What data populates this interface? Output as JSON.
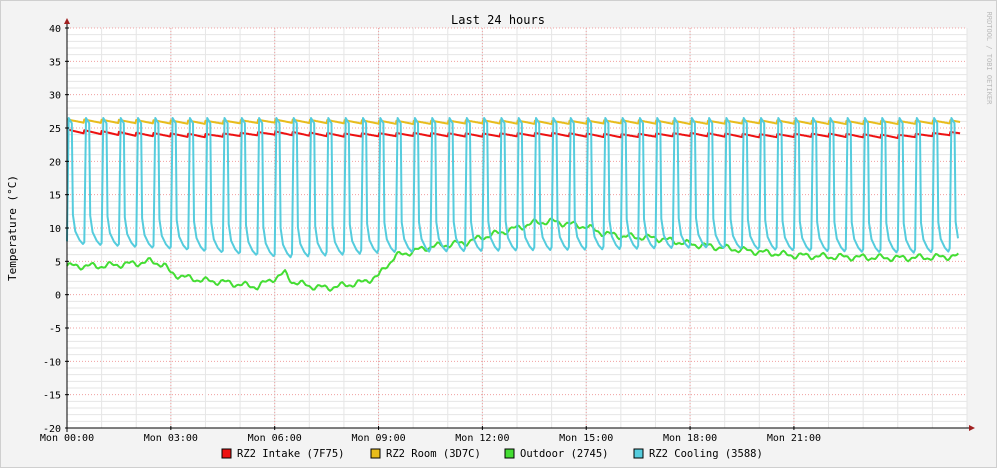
{
  "chart_data": {
    "type": "line",
    "title": "Last 24 hours",
    "ylabel": "Temperature (°C)",
    "watermark": "RRDTOOL / TOBI OETIKER",
    "ylim": [
      -20,
      40
    ],
    "yticks": [
      40,
      35,
      30,
      25,
      20,
      15,
      10,
      5,
      0,
      -5,
      -10,
      -15,
      -20
    ],
    "xlim": [
      0,
      26
    ],
    "xticks": [
      {
        "hour": 0,
        "label": "Mon 00:00"
      },
      {
        "hour": 3,
        "label": "Mon 03:00"
      },
      {
        "hour": 6,
        "label": "Mon 06:00"
      },
      {
        "hour": 9,
        "label": "Mon 09:00"
      },
      {
        "hour": 12,
        "label": "Mon 12:00"
      },
      {
        "hour": 15,
        "label": "Mon 15:00"
      },
      {
        "hour": 18,
        "label": "Mon 18:00"
      },
      {
        "hour": 21,
        "label": "Mon 21:00"
      }
    ],
    "legend_position": "bottom",
    "series": [
      {
        "name": "RZ2 Intake (7F75)",
        "color": "#ee1111",
        "values": [
          [
            0,
            24.5
          ],
          [
            2,
            24.0
          ],
          [
            4,
            23.8
          ],
          [
            6,
            24.2
          ],
          [
            8,
            23.9
          ],
          [
            10,
            24.0
          ],
          [
            12,
            23.9
          ],
          [
            14,
            24.0
          ],
          [
            16,
            23.8
          ],
          [
            18,
            24.0
          ],
          [
            20,
            23.8
          ],
          [
            22,
            23.9
          ],
          [
            24,
            23.7
          ],
          [
            25.8,
            24.2
          ]
        ]
      },
      {
        "name": "RZ2 Room (3D7C)",
        "color": "#e8bc1c",
        "values": [
          [
            0,
            26.0
          ],
          [
            2,
            25.9
          ],
          [
            4,
            25.8
          ],
          [
            6,
            26.0
          ],
          [
            8,
            25.9
          ],
          [
            10,
            25.8
          ],
          [
            12,
            25.9
          ],
          [
            14,
            25.8
          ],
          [
            16,
            25.9
          ],
          [
            18,
            25.8
          ],
          [
            20,
            25.9
          ],
          [
            22,
            25.8
          ],
          [
            24,
            25.8
          ],
          [
            25.8,
            25.9
          ]
        ]
      },
      {
        "name": "Outdoor (2745)",
        "color": "#44dd33",
        "values": [
          [
            0,
            4.3
          ],
          [
            1,
            4.3
          ],
          [
            2,
            4.7
          ],
          [
            2.4,
            5.0
          ],
          [
            2.8,
            4.5
          ],
          [
            3,
            3.2
          ],
          [
            3.5,
            2.5
          ],
          [
            4,
            2.1
          ],
          [
            4.5,
            1.9
          ],
          [
            5,
            1.5
          ],
          [
            5.5,
            1.2
          ],
          [
            6,
            2.5
          ],
          [
            6.3,
            3.2
          ],
          [
            6.5,
            2.0
          ],
          [
            7,
            1.3
          ],
          [
            7.5,
            1.0
          ],
          [
            8,
            1.4
          ],
          [
            8.5,
            1.8
          ],
          [
            9,
            2.8
          ],
          [
            9.2,
            4.2
          ],
          [
            9.5,
            5.8
          ],
          [
            10,
            6.5
          ],
          [
            10.5,
            7.2
          ],
          [
            11,
            7.5
          ],
          [
            11.5,
            7.8
          ],
          [
            12,
            8.6
          ],
          [
            12.5,
            9.3
          ],
          [
            13,
            10.0
          ],
          [
            13.5,
            10.8
          ],
          [
            14,
            11.0
          ],
          [
            14.5,
            10.6
          ],
          [
            15,
            10.2
          ],
          [
            15.5,
            9.2
          ],
          [
            16,
            8.8
          ],
          [
            17,
            8.5
          ],
          [
            18,
            7.6
          ],
          [
            19,
            7.0
          ],
          [
            20,
            6.4
          ],
          [
            21,
            5.9
          ],
          [
            22,
            5.7
          ],
          [
            23,
            5.6
          ],
          [
            24,
            5.5
          ],
          [
            25,
            5.6
          ],
          [
            25.8,
            5.8
          ]
        ]
      },
      {
        "name": "RZ2 Cooling (3588)",
        "color": "#55ccdd",
        "baseline": [
          [
            0,
            7.0
          ],
          [
            3,
            6.2
          ],
          [
            6,
            5.0
          ],
          [
            9,
            5.8
          ],
          [
            12,
            6.0
          ],
          [
            15,
            6.2
          ],
          [
            18,
            6.5
          ],
          [
            21,
            6.0
          ],
          [
            24,
            5.7
          ],
          [
            25.8,
            6.0
          ]
        ],
        "peak": 26.5,
        "cycle_hours": 0.5
      }
    ]
  }
}
